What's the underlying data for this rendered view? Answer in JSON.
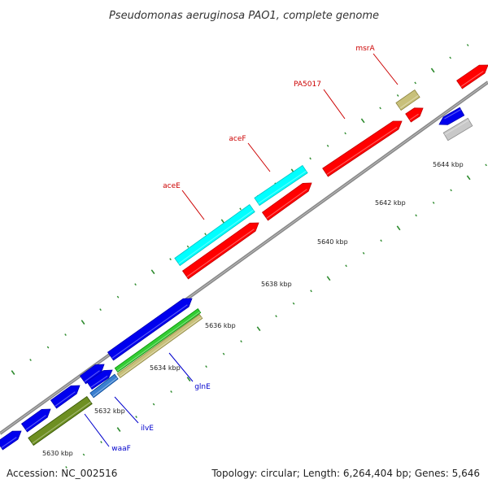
{
  "title": "Pseudomonas aeruginosa PAO1, complete genome",
  "footer": {
    "accession": "Accession: NC_002516",
    "summary": "Topology: circular; Length: 6,264,404 bp; Genes: 5,646"
  },
  "colors": {
    "red": "#ff0000",
    "cyan": "#00ffff",
    "blue": "#0000ee",
    "olive": "#6e8f22",
    "khaki": "#c8c07a",
    "green": "#33cc33",
    "steel": "#3a7fd0",
    "grey": "#c8c8c8",
    "backbone": "#888888",
    "tick": "#2e8b2e",
    "label_red": "#cc0000",
    "label_blue": "#0000cc"
  },
  "scale_ticks": [
    {
      "label": "5630 kbp"
    },
    {
      "label": "5632 kbp"
    },
    {
      "label": "5634 kbp"
    },
    {
      "label": "5636 kbp"
    },
    {
      "label": "5638 kbp"
    },
    {
      "label": "5640 kbp"
    },
    {
      "label": "5642 kbp"
    },
    {
      "label": "5644 kbp"
    }
  ],
  "gene_labels": [
    {
      "name": "msrA",
      "color": "red"
    },
    {
      "name": "PA5017",
      "color": "red"
    },
    {
      "name": "aceF",
      "color": "red"
    },
    {
      "name": "aceE",
      "color": "red"
    },
    {
      "name": "glnE",
      "color": "blue"
    },
    {
      "name": "ilvE",
      "color": "blue"
    },
    {
      "name": "waaF",
      "color": "blue"
    }
  ]
}
